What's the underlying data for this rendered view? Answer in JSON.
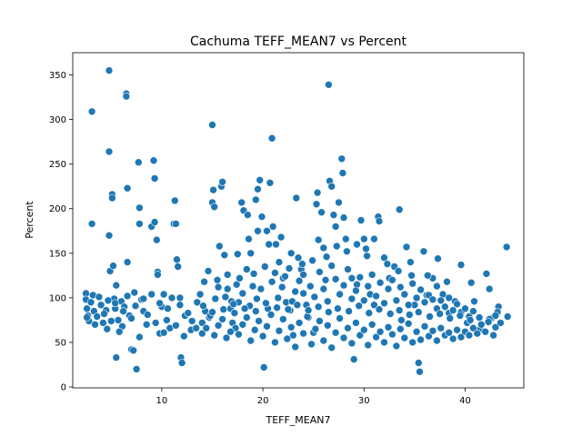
{
  "chart_data": {
    "type": "scatter",
    "title": "Cachuma TEFF_MEAN7 vs Percent",
    "xlabel": "TEFF_MEAN7",
    "ylabel": "Percent",
    "xlim": [
      1.2,
      45.8
    ],
    "ylim": [
      -1,
      375
    ],
    "xticks": [
      10,
      20,
      30,
      40
    ],
    "yticks": [
      0,
      50,
      100,
      150,
      200,
      250,
      300,
      350
    ],
    "grid": false,
    "legend": "none",
    "marker_color": "#1f77b4",
    "points": [
      [
        2.5,
        105
      ],
      [
        2.5,
        98
      ],
      [
        2.6,
        88
      ],
      [
        2.7,
        80
      ],
      [
        2.8,
        74
      ],
      [
        3.1,
        309
      ],
      [
        3.1,
        183
      ],
      [
        3.2,
        103
      ],
      [
        3.3,
        85
      ],
      [
        3.6,
        79
      ],
      [
        4.0,
        92
      ],
      [
        4.2,
        72
      ],
      [
        4.5,
        86
      ],
      [
        4.6,
        65
      ],
      [
        4.8,
        355
      ],
      [
        4.8,
        264
      ],
      [
        4.8,
        170
      ],
      [
        4.9,
        130
      ],
      [
        5.1,
        216
      ],
      [
        5.1,
        212
      ],
      [
        5.2,
        136
      ],
      [
        5.3,
        99
      ],
      [
        5.4,
        88
      ],
      [
        5.5,
        114
      ],
      [
        5.5,
        33
      ],
      [
        5.7,
        75
      ],
      [
        6.0,
        96
      ],
      [
        6.1,
        68
      ],
      [
        6.3,
        90
      ],
      [
        6.5,
        329
      ],
      [
        6.5,
        326
      ],
      [
        6.6,
        223
      ],
      [
        6.6,
        140
      ],
      [
        6.8,
        80
      ],
      [
        7.0,
        42
      ],
      [
        7.2,
        41
      ],
      [
        7.3,
        106
      ],
      [
        7.5,
        20
      ],
      [
        7.7,
        252
      ],
      [
        7.8,
        201
      ],
      [
        7.8,
        183
      ],
      [
        8.0,
        98
      ],
      [
        8.2,
        85
      ],
      [
        8.5,
        70
      ],
      [
        9.0,
        180
      ],
      [
        9.2,
        254
      ],
      [
        9.3,
        234
      ],
      [
        9.3,
        185
      ],
      [
        9.5,
        165
      ],
      [
        9.6,
        129
      ],
      [
        9.6,
        126
      ],
      [
        9.8,
        60
      ],
      [
        10.0,
        90
      ],
      [
        10.2,
        104
      ],
      [
        10.5,
        75
      ],
      [
        10.8,
        66
      ],
      [
        11.2,
        183
      ],
      [
        11.3,
        209
      ],
      [
        11.4,
        183
      ],
      [
        11.5,
        143
      ],
      [
        11.6,
        135
      ],
      [
        11.8,
        100
      ],
      [
        11.9,
        33
      ],
      [
        12.0,
        27
      ],
      [
        12.3,
        80
      ],
      [
        12.9,
        64
      ],
      [
        13.5,
        95
      ],
      [
        14.0,
        60
      ],
      [
        14.3,
        85
      ],
      [
        14.7,
        78
      ],
      [
        15.0,
        294
      ],
      [
        15.0,
        207
      ],
      [
        15.1,
        221
      ],
      [
        15.2,
        202
      ],
      [
        15.5,
        120
      ],
      [
        15.7,
        158
      ],
      [
        15.9,
        225
      ],
      [
        16.0,
        230
      ],
      [
        16.2,
        148
      ],
      [
        16.5,
        110
      ],
      [
        16.8,
        88
      ],
      [
        17.0,
        72
      ],
      [
        17.3,
        66
      ],
      [
        17.6,
        95
      ],
      [
        17.9,
        207
      ],
      [
        18.1,
        198
      ],
      [
        18.5,
        193
      ],
      [
        18.8,
        150
      ],
      [
        19.0,
        113
      ],
      [
        19.3,
        210
      ],
      [
        19.5,
        222
      ],
      [
        19.7,
        232
      ],
      [
        19.9,
        191
      ],
      [
        20.1,
        22
      ],
      [
        20.4,
        175
      ],
      [
        20.7,
        229
      ],
      [
        20.9,
        279
      ],
      [
        21.0,
        180
      ],
      [
        21.3,
        160
      ],
      [
        21.6,
        140
      ],
      [
        22.0,
        122
      ],
      [
        22.3,
        95
      ],
      [
        22.7,
        86
      ],
      [
        23.0,
        58
      ],
      [
        23.3,
        212
      ],
      [
        23.5,
        145
      ],
      [
        23.8,
        132
      ],
      [
        24.0,
        105
      ],
      [
        24.5,
        78
      ],
      [
        25.0,
        61
      ],
      [
        25.3,
        205
      ],
      [
        25.4,
        218
      ],
      [
        25.5,
        165
      ],
      [
        25.8,
        196
      ],
      [
        26.0,
        156
      ],
      [
        26.2,
        120
      ],
      [
        26.5,
        339
      ],
      [
        26.6,
        231
      ],
      [
        26.8,
        225
      ],
      [
        27.0,
        193
      ],
      [
        27.2,
        180
      ],
      [
        27.5,
        207
      ],
      [
        27.8,
        256
      ],
      [
        27.9,
        240
      ],
      [
        28.0,
        190
      ],
      [
        28.3,
        152
      ],
      [
        28.8,
        122
      ],
      [
        29.0,
        31
      ],
      [
        29.3,
        115
      ],
      [
        29.7,
        187
      ],
      [
        30.0,
        166
      ],
      [
        30.3,
        147
      ],
      [
        30.6,
        104
      ],
      [
        31.0,
        92
      ],
      [
        31.4,
        191
      ],
      [
        31.5,
        186
      ],
      [
        32.0,
        145
      ],
      [
        32.5,
        122
      ],
      [
        33.0,
        135
      ],
      [
        33.5,
        199
      ],
      [
        33.7,
        75
      ],
      [
        34.2,
        157
      ],
      [
        34.7,
        125
      ],
      [
        35.0,
        92
      ],
      [
        35.4,
        27
      ],
      [
        35.5,
        17
      ],
      [
        35.9,
        152
      ],
      [
        36.2,
        103
      ],
      [
        36.8,
        122
      ],
      [
        37.3,
        144
      ],
      [
        37.8,
        104
      ],
      [
        38.4,
        83
      ],
      [
        39.0,
        96
      ],
      [
        39.6,
        137
      ],
      [
        40.2,
        72
      ],
      [
        40.6,
        117
      ],
      [
        40.9,
        96
      ],
      [
        41.5,
        65
      ],
      [
        42.1,
        127
      ],
      [
        42.4,
        110
      ],
      [
        42.6,
        77
      ],
      [
        43.0,
        67
      ],
      [
        43.3,
        90
      ],
      [
        44.1,
        157
      ],
      [
        44.2,
        79
      ],
      [
        13.8,
        104
      ],
      [
        14.2,
        118
      ],
      [
        14.6,
        130
      ],
      [
        15.3,
        99
      ],
      [
        15.6,
        112
      ],
      [
        16.1,
        87
      ],
      [
        16.5,
        126
      ],
      [
        16.9,
        96
      ],
      [
        17.4,
        115
      ],
      [
        17.7,
        122
      ],
      [
        18.0,
        105
      ],
      [
        18.4,
        132
      ],
      [
        18.7,
        91
      ],
      [
        19.1,
        127
      ],
      [
        19.4,
        99
      ],
      [
        19.8,
        110
      ],
      [
        20.2,
        135
      ],
      [
        20.5,
        88
      ],
      [
        20.9,
        118
      ],
      [
        21.2,
        128
      ],
      [
        21.5,
        100
      ],
      [
        21.9,
        112
      ],
      [
        22.2,
        124
      ],
      [
        22.6,
        133
      ],
      [
        22.9,
        96
      ],
      [
        23.2,
        107
      ],
      [
        23.6,
        119
      ],
      [
        24.0,
        126
      ],
      [
        24.3,
        92
      ],
      [
        24.7,
        113
      ],
      [
        25.1,
        101
      ],
      [
        25.6,
        129
      ],
      [
        26.0,
        110
      ],
      [
        26.4,
        96
      ],
      [
        26.8,
        136
      ],
      [
        27.2,
        121
      ],
      [
        27.6,
        104
      ],
      [
        28.0,
        114
      ],
      [
        28.4,
        132
      ],
      [
        28.8,
        99
      ],
      [
        29.2,
        108
      ],
      [
        29.6,
        123
      ],
      [
        30.0,
        97
      ],
      [
        30.4,
        113
      ],
      [
        30.8,
        126
      ],
      [
        31.2,
        102
      ],
      [
        31.6,
        117
      ],
      [
        32.0,
        94
      ],
      [
        32.4,
        110
      ],
      [
        32.8,
        120
      ],
      [
        33.2,
        97
      ],
      [
        33.6,
        112
      ],
      [
        34.0,
        104
      ],
      [
        34.4,
        92
      ],
      [
        34.8,
        116
      ],
      [
        35.2,
        100
      ],
      [
        35.6,
        109
      ],
      [
        36.0,
        95
      ],
      [
        36.4,
        103
      ],
      [
        36.8,
        98
      ],
      [
        37.2,
        88
      ],
      [
        37.6,
        97
      ],
      [
        38.0,
        90
      ],
      [
        38.4,
        100
      ],
      [
        38.8,
        86
      ],
      [
        39.2,
        93
      ],
      [
        39.6,
        84
      ],
      [
        40.0,
        88
      ],
      [
        40.4,
        79
      ],
      [
        40.8,
        85
      ],
      [
        14.0,
        72
      ],
      [
        14.4,
        66
      ],
      [
        14.8,
        80
      ],
      [
        15.2,
        58
      ],
      [
        15.6,
        69
      ],
      [
        16.0,
        76
      ],
      [
        16.4,
        55
      ],
      [
        16.8,
        62
      ],
      [
        17.2,
        83
      ],
      [
        17.6,
        59
      ],
      [
        18.0,
        70
      ],
      [
        18.4,
        78
      ],
      [
        18.8,
        52
      ],
      [
        19.2,
        64
      ],
      [
        19.6,
        74
      ],
      [
        20.0,
        57
      ],
      [
        20.4,
        68
      ],
      [
        20.8,
        81
      ],
      [
        21.2,
        50
      ],
      [
        21.6,
        63
      ],
      [
        22.0,
        76
      ],
      [
        22.4,
        54
      ],
      [
        22.8,
        67
      ],
      [
        23.2,
        45
      ],
      [
        23.6,
        72
      ],
      [
        24.0,
        60
      ],
      [
        24.4,
        79
      ],
      [
        24.8,
        48
      ],
      [
        25.2,
        65
      ],
      [
        25.6,
        74
      ],
      [
        26.0,
        52
      ],
      [
        26.4,
        69
      ],
      [
        26.8,
        44
      ],
      [
        27.2,
        61
      ],
      [
        27.6,
        77
      ],
      [
        28.0,
        55
      ],
      [
        28.4,
        66
      ],
      [
        28.8,
        49
      ],
      [
        29.2,
        72
      ],
      [
        29.6,
        58
      ],
      [
        30.0,
        64
      ],
      [
        30.4,
        47
      ],
      [
        30.8,
        70
      ],
      [
        31.2,
        56
      ],
      [
        31.6,
        62
      ],
      [
        32.0,
        50
      ],
      [
        32.4,
        67
      ],
      [
        32.8,
        59
      ],
      [
        33.2,
        46
      ],
      [
        33.6,
        65
      ],
      [
        34.0,
        55
      ],
      [
        34.4,
        71
      ],
      [
        34.8,
        50
      ],
      [
        35.2,
        62
      ],
      [
        35.6,
        53
      ],
      [
        36.0,
        68
      ],
      [
        36.4,
        57
      ],
      [
        36.8,
        63
      ],
      [
        37.2,
        52
      ],
      [
        37.6,
        66
      ],
      [
        38.0,
        58
      ],
      [
        38.4,
        61
      ],
      [
        38.8,
        54
      ],
      [
        39.2,
        64
      ],
      [
        39.6,
        56
      ],
      [
        40.0,
        62
      ],
      [
        40.4,
        58
      ],
      [
        40.8,
        66
      ],
      [
        41.2,
        60
      ],
      [
        41.6,
        70
      ],
      [
        42.0,
        62
      ],
      [
        42.4,
        76
      ],
      [
        42.8,
        58
      ],
      [
        43.2,
        84
      ],
      [
        43.5,
        72
      ],
      [
        2.6,
        78
      ],
      [
        3.0,
        95
      ],
      [
        3.4,
        70
      ],
      [
        3.8,
        101
      ],
      [
        4.3,
        82
      ],
      [
        4.7,
        97
      ],
      [
        5.0,
        74
      ],
      [
        5.4,
        94
      ],
      [
        5.8,
        62
      ],
      [
        6.2,
        85
      ],
      [
        6.6,
        102
      ],
      [
        7.0,
        77
      ],
      [
        7.4,
        91
      ],
      [
        7.8,
        56
      ],
      [
        8.2,
        99
      ],
      [
        8.6,
        81
      ],
      [
        9.0,
        104
      ],
      [
        9.4,
        72
      ],
      [
        9.8,
        94
      ],
      [
        10.2,
        61
      ],
      [
        10.6,
        88
      ],
      [
        11.0,
        100
      ],
      [
        11.4,
        69
      ],
      [
        11.8,
        92
      ],
      [
        12.2,
        57
      ],
      [
        12.6,
        83
      ],
      [
        13.0,
        74
      ],
      [
        13.4,
        66
      ],
      [
        14.1,
        91
      ],
      [
        15.0,
        84
      ],
      [
        16.3,
        101
      ],
      [
        17.1,
        93
      ],
      [
        18.2,
        88
      ],
      [
        19.3,
        85
      ],
      [
        20.3,
        94
      ],
      [
        21.4,
        89
      ],
      [
        22.5,
        87
      ],
      [
        23.4,
        92
      ],
      [
        24.5,
        86
      ],
      [
        25.5,
        90
      ],
      [
        26.5,
        84
      ],
      [
        27.4,
        88
      ],
      [
        28.5,
        85
      ],
      [
        29.5,
        91
      ],
      [
        30.5,
        83
      ],
      [
        31.5,
        87
      ],
      [
        32.6,
        82
      ],
      [
        33.5,
        86
      ],
      [
        34.5,
        81
      ],
      [
        35.4,
        84
      ],
      [
        36.5,
        79
      ],
      [
        37.5,
        82
      ],
      [
        38.5,
        77
      ],
      [
        39.5,
        80
      ],
      [
        40.5,
        75
      ],
      [
        41.4,
        78
      ],
      [
        42.3,
        73
      ],
      [
        43.0,
        80
      ],
      [
        17.5,
        149
      ],
      [
        18.6,
        166
      ],
      [
        19.5,
        175
      ],
      [
        20.6,
        160
      ],
      [
        21.8,
        168
      ],
      [
        22.8,
        150
      ],
      [
        23.9,
        138
      ],
      [
        24.9,
        142
      ],
      [
        26.3,
        146
      ],
      [
        27.3,
        158
      ],
      [
        28.2,
        166
      ],
      [
        29.3,
        160
      ],
      [
        30.2,
        155
      ],
      [
        31.0,
        166
      ],
      [
        32.3,
        138
      ],
      [
        33.4,
        130
      ],
      [
        34.6,
        140
      ],
      [
        36.3,
        125
      ],
      [
        37.2,
        113
      ],
      [
        38.2,
        118
      ]
    ]
  }
}
